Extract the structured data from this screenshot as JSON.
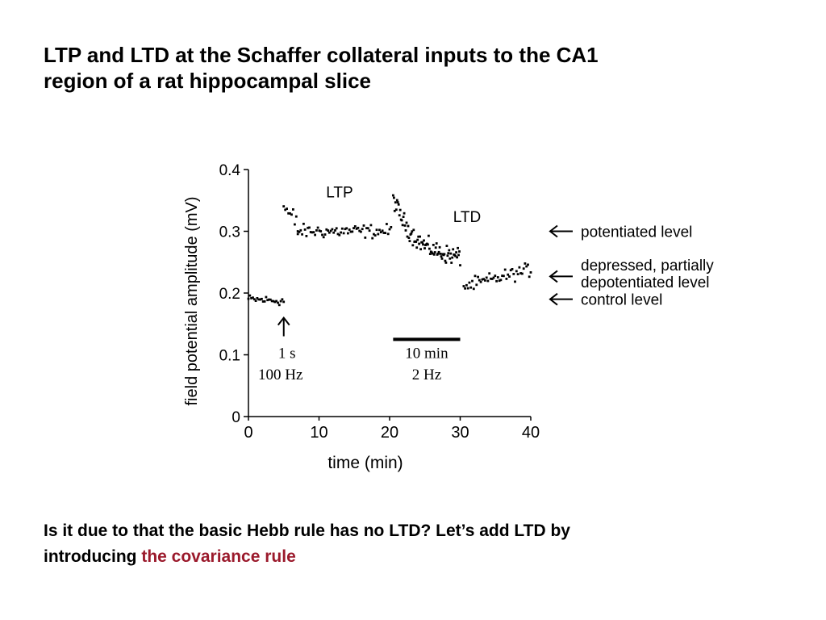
{
  "slide": {
    "title_line1": "LTP and LTD at the Schaffer collateral inputs to the CA1",
    "title_line2": "region of a rat hippocampal slice",
    "footer_line1": "Is it due to that the basic Hebb rule has no LTD? Let’s add LTD by",
    "footer_line2_prefix": "introducing",
    "footer_line2_highlight": "the covariance rule",
    "highlight_color": "#9b1a2c"
  },
  "chart_data": {
    "type": "scatter",
    "ylabel": "field potential amplitude (mV)",
    "xlabel": "time (min)",
    "xlim": [
      0,
      40
    ],
    "ylim": [
      0,
      0.4
    ],
    "xticks": [
      "0",
      "10",
      "20",
      "30",
      "40"
    ],
    "yticks": [
      "0",
      "0.1",
      "0.2",
      "0.3",
      "0.4"
    ],
    "annotations": {
      "ltp": "LTP",
      "ltd": "LTD",
      "stim1_line1": "1 s",
      "stim1_line2": "100 Hz",
      "stim2_line1": "10 min",
      "stim2_line2": "2 Hz",
      "stim1_time": 5,
      "stim2_bar": [
        20.5,
        30
      ]
    },
    "levels": [
      {
        "name": "potentiated level",
        "label_lines": [
          "potentiated level"
        ],
        "y": 0.3
      },
      {
        "name": "depressed, partially depotentiated level",
        "label_lines": [
          "depressed, partially",
          "depotentiated level"
        ],
        "y": 0.24
      },
      {
        "name": "control level",
        "label_lines": [
          "control level"
        ],
        "y": 0.19
      }
    ],
    "series": [
      {
        "segments": [
          {
            "x_range": [
              0,
              5
            ],
            "mean_start": 0.19,
            "mean_end": 0.187,
            "scatter": 0.006
          },
          {
            "x_range": [
              5,
              7
            ],
            "mean_start": 0.34,
            "mean_end": 0.305,
            "scatter": 0.02
          },
          {
            "x_range": [
              7,
              20.2
            ],
            "mean_start": 0.3,
            "mean_end": 0.3,
            "scatter": 0.009
          },
          {
            "x_range": [
              20.5,
              30
            ],
            "mean_start": 0.355,
            "mean_end": 0.255,
            "scatter": 0.012
          },
          {
            "x_range": [
              30.5,
              40
            ],
            "mean_start": 0.21,
            "mean_end": 0.238,
            "scatter": 0.009
          }
        ]
      }
    ]
  }
}
